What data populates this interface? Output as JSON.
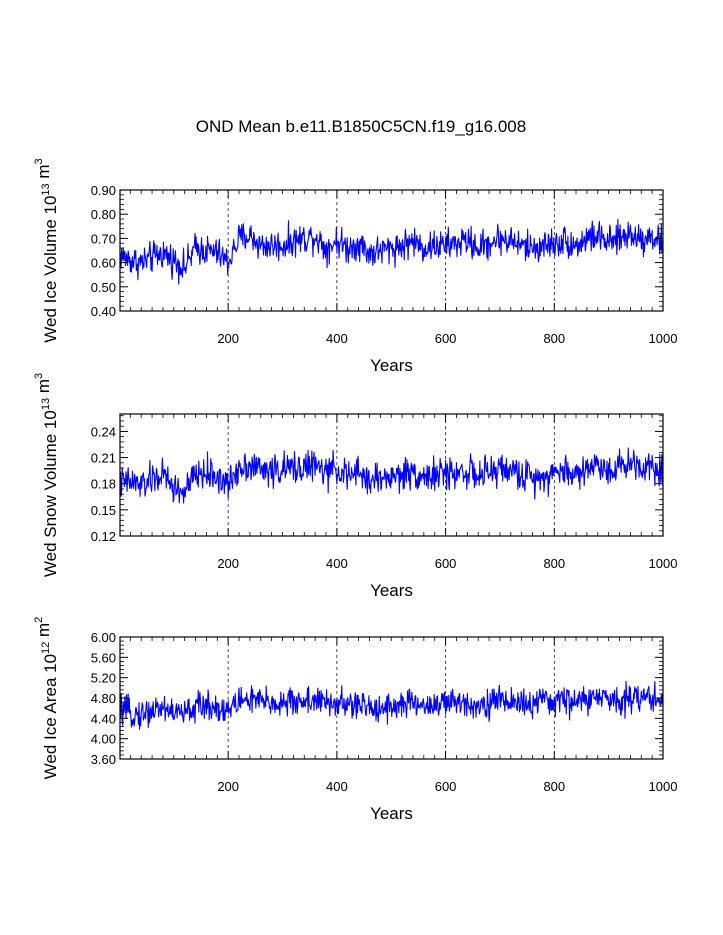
{
  "title": "OND Mean b.e11.B1850C5CN.f19_g16.008",
  "line_color": "#0000ff",
  "chart_data": [
    {
      "type": "line",
      "xlabel": "Years",
      "ylabel": "Wed Ice Volume 10",
      "ylabel_exp": "13",
      "ylabel_unit": " m",
      "ylabel_unit_exp": "3",
      "xlim": [
        1,
        1000
      ],
      "ylim": [
        0.4,
        0.9
      ],
      "xticks": [
        200,
        400,
        600,
        800,
        1000
      ],
      "xtick_labels": [
        "200",
        "400",
        "600",
        "800",
        "1000"
      ],
      "yticks": [
        0.4,
        0.5,
        0.6,
        0.7,
        0.8,
        0.9
      ],
      "ytick_labels": [
        "0.40",
        "0.50",
        "0.60",
        "0.70",
        "0.80",
        "0.90"
      ],
      "grid": "vertical dashed at major x ticks",
      "series_name": "Wed Ice Volume",
      "x": [
        1,
        20,
        40,
        60,
        80,
        100,
        120,
        140,
        160,
        180,
        200,
        220,
        240,
        260,
        280,
        300,
        320,
        340,
        360,
        380,
        400,
        420,
        440,
        460,
        480,
        500,
        520,
        540,
        560,
        580,
        600,
        620,
        640,
        660,
        680,
        700,
        720,
        740,
        760,
        780,
        800,
        820,
        840,
        860,
        880,
        900,
        920,
        940,
        960,
        980,
        1000
      ],
      "values": [
        0.63,
        0.61,
        0.6,
        0.62,
        0.64,
        0.61,
        0.58,
        0.66,
        0.65,
        0.64,
        0.6,
        0.7,
        0.71,
        0.67,
        0.67,
        0.67,
        0.69,
        0.7,
        0.71,
        0.66,
        0.69,
        0.66,
        0.68,
        0.64,
        0.65,
        0.66,
        0.67,
        0.69,
        0.66,
        0.67,
        0.67,
        0.68,
        0.69,
        0.66,
        0.68,
        0.7,
        0.69,
        0.67,
        0.66,
        0.67,
        0.68,
        0.69,
        0.67,
        0.7,
        0.71,
        0.68,
        0.7,
        0.72,
        0.7,
        0.71,
        0.68
      ],
      "amplitude": 0.045,
      "clip": [
        0.5,
        0.86
      ]
    },
    {
      "type": "line",
      "xlabel": "Years",
      "ylabel": "Wed Snow Volume 10",
      "ylabel_exp": "13",
      "ylabel_unit": " m",
      "ylabel_unit_exp": "3",
      "xlim": [
        1,
        1000
      ],
      "ylim": [
        0.12,
        0.26
      ],
      "xticks": [
        200,
        400,
        600,
        800,
        1000
      ],
      "xtick_labels": [
        "200",
        "400",
        "600",
        "800",
        "1000"
      ],
      "yticks": [
        0.12,
        0.15,
        0.18,
        0.21,
        0.24
      ],
      "ytick_labels": [
        "0.12",
        "0.15",
        "0.18",
        "0.21",
        "0.24"
      ],
      "grid": "vertical dashed at major x ticks",
      "series_name": "Wed Snow Volume",
      "x": [
        1,
        20,
        40,
        60,
        80,
        100,
        120,
        140,
        160,
        180,
        200,
        220,
        240,
        260,
        280,
        300,
        320,
        340,
        360,
        380,
        400,
        420,
        440,
        460,
        480,
        500,
        520,
        540,
        560,
        580,
        600,
        620,
        640,
        660,
        680,
        700,
        720,
        740,
        760,
        780,
        800,
        820,
        840,
        860,
        880,
        900,
        920,
        940,
        960,
        980,
        1000
      ],
      "values": [
        0.18,
        0.182,
        0.178,
        0.185,
        0.19,
        0.175,
        0.17,
        0.19,
        0.192,
        0.188,
        0.178,
        0.2,
        0.202,
        0.196,
        0.195,
        0.196,
        0.198,
        0.2,
        0.201,
        0.192,
        0.198,
        0.188,
        0.192,
        0.184,
        0.186,
        0.188,
        0.19,
        0.194,
        0.188,
        0.19,
        0.191,
        0.193,
        0.195,
        0.188,
        0.192,
        0.198,
        0.195,
        0.19,
        0.187,
        0.19,
        0.192,
        0.196,
        0.19,
        0.198,
        0.202,
        0.196,
        0.2,
        0.205,
        0.2,
        0.202,
        0.195
      ],
      "amplitude": 0.013,
      "clip": [
        0.14,
        0.258
      ]
    },
    {
      "type": "line",
      "xlabel": "Years",
      "ylabel": "Wed Ice Area 10",
      "ylabel_exp": "12",
      "ylabel_unit": " m",
      "ylabel_unit_exp": "2",
      "xlim": [
        1,
        1000
      ],
      "ylim": [
        3.6,
        6.0
      ],
      "xticks": [
        200,
        400,
        600,
        800,
        1000
      ],
      "xtick_labels": [
        "200",
        "400",
        "600",
        "800",
        "1000"
      ],
      "yticks": [
        3.6,
        4.0,
        4.4,
        4.8,
        5.2,
        5.6,
        6.0
      ],
      "ytick_labels": [
        "3.60",
        "4.00",
        "4.40",
        "4.80",
        "5.20",
        "5.60",
        "6.00"
      ],
      "grid": "vertical dashed at major x ticks",
      "series_name": "Wed Ice Area",
      "x": [
        1,
        20,
        40,
        60,
        80,
        100,
        120,
        140,
        160,
        180,
        200,
        220,
        240,
        260,
        280,
        300,
        320,
        340,
        360,
        380,
        400,
        420,
        440,
        460,
        480,
        500,
        520,
        540,
        560,
        580,
        600,
        620,
        640,
        660,
        680,
        700,
        720,
        740,
        760,
        780,
        800,
        820,
        840,
        860,
        880,
        900,
        920,
        940,
        960,
        980,
        1000
      ],
      "values": [
        4.55,
        4.5,
        4.48,
        4.55,
        4.62,
        4.52,
        4.5,
        4.62,
        4.66,
        4.62,
        4.55,
        4.75,
        4.78,
        4.72,
        4.7,
        4.7,
        4.72,
        4.75,
        4.76,
        4.68,
        4.7,
        4.65,
        4.66,
        4.6,
        4.62,
        4.64,
        4.66,
        4.7,
        4.65,
        4.68,
        4.68,
        4.7,
        4.72,
        4.66,
        4.7,
        4.76,
        4.74,
        4.7,
        4.68,
        4.72,
        4.74,
        4.76,
        4.72,
        4.78,
        4.8,
        4.76,
        4.78,
        4.82,
        4.8,
        4.82,
        4.78
      ],
      "amplitude": 0.2,
      "clip": [
        3.85,
        5.8
      ]
    }
  ]
}
